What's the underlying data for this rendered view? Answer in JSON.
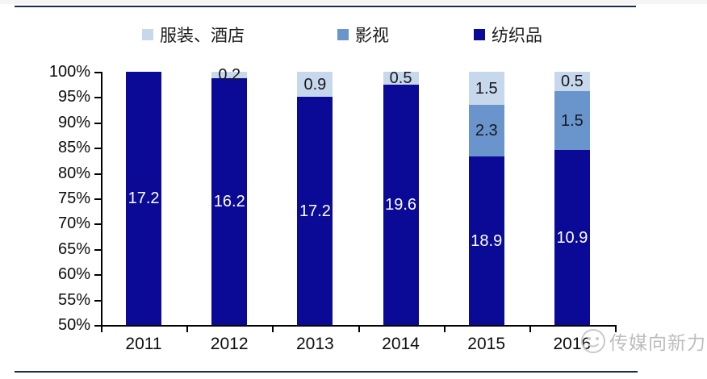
{
  "legend": {
    "items": [
      {
        "label": "服装、酒店",
        "color": "#c8d8ec",
        "x": 176
      },
      {
        "label": "影视",
        "color": "#6a95cc",
        "x": 418
      },
      {
        "label": "纺织品",
        "color": "#0a0a96",
        "x": 587
      }
    ]
  },
  "watermark": {
    "label": "传媒向新力",
    "icon": "media-account-logo",
    "color": "#bdbdbd"
  },
  "chart_data": {
    "type": "bar",
    "subtype": "stacked-100-percent",
    "title": "",
    "xlabel": "",
    "ylabel": "",
    "categories": [
      "2011",
      "2012",
      "2013",
      "2014",
      "2015",
      "2016"
    ],
    "series": [
      {
        "name": "纺织品",
        "color": "#0a0a96",
        "label_color": "#ffffff",
        "values": [
          17.2,
          16.2,
          17.2,
          19.6,
          18.9,
          10.9
        ]
      },
      {
        "name": "影视",
        "color": "#6a95cc",
        "label_color": "#17171f",
        "values": [
          null,
          null,
          null,
          null,
          2.3,
          1.5
        ]
      },
      {
        "name": "服装、酒店",
        "color": "#c8d8ec",
        "label_color": "#17171f",
        "values": [
          null,
          0.2,
          0.9,
          0.5,
          1.5,
          0.5
        ]
      }
    ],
    "y_axis": {
      "min": 50,
      "max": 100,
      "step": 5,
      "format": "percent",
      "tick_labels": [
        "100%",
        "95%",
        "90%",
        "85%",
        "80%",
        "75%",
        "70%",
        "65%",
        "60%",
        "55%",
        "50%"
      ]
    },
    "grid": false,
    "legend_position": "top"
  }
}
